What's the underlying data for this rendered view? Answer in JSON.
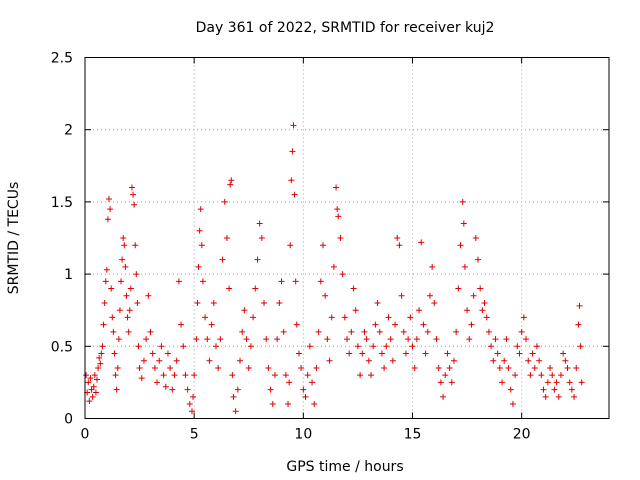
{
  "chart_data": {
    "type": "scatter",
    "title": "Day 361 of 2022, SRMTID for receiver kuj2",
    "xlabel": "GPS time / hours",
    "ylabel": "SRMTID / TECUs",
    "xlim": [
      0,
      24
    ],
    "ylim": [
      0,
      2.5
    ],
    "x_ticks": [
      0,
      5,
      10,
      15,
      20
    ],
    "x_tick_labels": [
      "0",
      "5",
      "10",
      "15",
      "20"
    ],
    "y_ticks": [
      0,
      0.5,
      1,
      1.5,
      2,
      2.5
    ],
    "y_tick_labels": [
      "0",
      "0.5",
      "1",
      "1.5",
      "2",
      "2.5"
    ],
    "grid": true,
    "marker": "plus",
    "marker_color": "#e00000",
    "series": [
      {
        "name": "SRMTID",
        "points": [
          [
            0.05,
            0.3
          ],
          [
            0.1,
            0.18
          ],
          [
            0.15,
            0.25
          ],
          [
            0.2,
            0.12
          ],
          [
            0.25,
            0.28
          ],
          [
            0.3,
            0.2
          ],
          [
            0.35,
            0.15
          ],
          [
            0.4,
            0.22
          ],
          [
            0.45,
            0.3
          ],
          [
            0.5,
            0.18
          ],
          [
            0.55,
            0.27
          ],
          [
            0.6,
            0.35
          ],
          [
            0.65,
            0.42
          ],
          [
            0.7,
            0.38
          ],
          [
            0.75,
            0.45
          ],
          [
            0.8,
            0.5
          ],
          [
            0.85,
            0.65
          ],
          [
            0.9,
            0.8
          ],
          [
            0.95,
            0.95
          ],
          [
            1.0,
            1.03
          ],
          [
            1.05,
            1.38
          ],
          [
            1.1,
            1.52
          ],
          [
            1.15,
            1.45
          ],
          [
            1.2,
            0.9
          ],
          [
            1.25,
            0.7
          ],
          [
            1.3,
            0.6
          ],
          [
            1.35,
            0.45
          ],
          [
            1.4,
            0.3
          ],
          [
            1.45,
            0.2
          ],
          [
            1.5,
            0.35
          ],
          [
            1.55,
            0.55
          ],
          [
            1.6,
            0.75
          ],
          [
            1.65,
            0.95
          ],
          [
            1.7,
            1.1
          ],
          [
            1.75,
            1.25
          ],
          [
            1.8,
            1.2
          ],
          [
            1.85,
            1.05
          ],
          [
            1.9,
            0.85
          ],
          [
            1.95,
            0.7
          ],
          [
            2.0,
            0.6
          ],
          [
            2.05,
            0.75
          ],
          [
            2.1,
            0.9
          ],
          [
            2.15,
            1.6
          ],
          [
            2.2,
            1.55
          ],
          [
            2.25,
            1.48
          ],
          [
            2.3,
            1.2
          ],
          [
            2.35,
            1.0
          ],
          [
            2.4,
            0.8
          ],
          [
            2.45,
            0.5
          ],
          [
            2.5,
            0.35
          ],
          [
            2.6,
            0.28
          ],
          [
            2.7,
            0.4
          ],
          [
            2.8,
            0.55
          ],
          [
            2.9,
            0.85
          ],
          [
            3.0,
            0.6
          ],
          [
            3.1,
            0.45
          ],
          [
            3.2,
            0.35
          ],
          [
            3.3,
            0.25
          ],
          [
            3.4,
            0.4
          ],
          [
            3.5,
            0.5
          ],
          [
            3.6,
            0.3
          ],
          [
            3.7,
            0.22
          ],
          [
            3.8,
            0.45
          ],
          [
            3.9,
            0.35
          ],
          [
            4.0,
            0.2
          ],
          [
            4.1,
            0.3
          ],
          [
            4.2,
            0.4
          ],
          [
            4.3,
            0.95
          ],
          [
            4.4,
            0.65
          ],
          [
            4.5,
            0.5
          ],
          [
            4.6,
            0.3
          ],
          [
            4.7,
            0.2
          ],
          [
            4.8,
            0.1
          ],
          [
            4.9,
            0.05
          ],
          [
            4.95,
            0.15
          ],
          [
            5.0,
            0.3
          ],
          [
            5.1,
            0.55
          ],
          [
            5.15,
            0.8
          ],
          [
            5.2,
            1.05
          ],
          [
            5.25,
            1.3
          ],
          [
            5.3,
            1.45
          ],
          [
            5.35,
            1.2
          ],
          [
            5.4,
            0.95
          ],
          [
            5.5,
            0.7
          ],
          [
            5.6,
            0.55
          ],
          [
            5.7,
            0.4
          ],
          [
            5.8,
            0.65
          ],
          [
            5.9,
            0.8
          ],
          [
            6.0,
            0.5
          ],
          [
            6.1,
            0.35
          ],
          [
            6.2,
            0.55
          ],
          [
            6.3,
            1.1
          ],
          [
            6.4,
            1.5
          ],
          [
            6.5,
            1.25
          ],
          [
            6.6,
            0.9
          ],
          [
            6.65,
            1.62
          ],
          [
            6.7,
            1.65
          ],
          [
            6.75,
            0.3
          ],
          [
            6.8,
            0.15
          ],
          [
            6.9,
            0.05
          ],
          [
            7.0,
            0.2
          ],
          [
            7.1,
            0.4
          ],
          [
            7.2,
            0.6
          ],
          [
            7.3,
            0.75
          ],
          [
            7.4,
            0.55
          ],
          [
            7.5,
            0.35
          ],
          [
            7.6,
            0.5
          ],
          [
            7.7,
            0.7
          ],
          [
            7.8,
            0.9
          ],
          [
            7.9,
            1.1
          ],
          [
            8.0,
            1.35
          ],
          [
            8.1,
            1.25
          ],
          [
            8.2,
            0.8
          ],
          [
            8.3,
            0.55
          ],
          [
            8.4,
            0.35
          ],
          [
            8.5,
            0.2
          ],
          [
            8.6,
            0.1
          ],
          [
            8.7,
            0.3
          ],
          [
            8.8,
            0.55
          ],
          [
            8.9,
            0.8
          ],
          [
            9.0,
            0.95
          ],
          [
            9.1,
            0.6
          ],
          [
            9.2,
            0.3
          ],
          [
            9.3,
            0.1
          ],
          [
            9.35,
            0.25
          ],
          [
            9.4,
            1.2
          ],
          [
            9.45,
            1.65
          ],
          [
            9.5,
            1.85
          ],
          [
            9.55,
            2.03
          ],
          [
            9.6,
            1.55
          ],
          [
            9.65,
            0.95
          ],
          [
            9.7,
            0.65
          ],
          [
            9.8,
            0.45
          ],
          [
            9.9,
            0.35
          ],
          [
            10.0,
            0.2
          ],
          [
            10.1,
            0.15
          ],
          [
            10.2,
            0.3
          ],
          [
            10.3,
            0.5
          ],
          [
            10.4,
            0.25
          ],
          [
            10.5,
            0.1
          ],
          [
            10.6,
            0.35
          ],
          [
            10.7,
            0.6
          ],
          [
            10.8,
            0.95
          ],
          [
            10.9,
            1.2
          ],
          [
            11.0,
            0.85
          ],
          [
            11.1,
            0.55
          ],
          [
            11.2,
            0.4
          ],
          [
            11.3,
            0.7
          ],
          [
            11.4,
            1.05
          ],
          [
            11.5,
            1.6
          ],
          [
            11.55,
            1.45
          ],
          [
            11.6,
            1.4
          ],
          [
            11.7,
            1.25
          ],
          [
            11.8,
            1.0
          ],
          [
            11.9,
            0.7
          ],
          [
            12.0,
            0.55
          ],
          [
            12.1,
            0.45
          ],
          [
            12.2,
            0.6
          ],
          [
            12.3,
            0.9
          ],
          [
            12.4,
            0.75
          ],
          [
            12.5,
            0.5
          ],
          [
            12.6,
            0.3
          ],
          [
            12.7,
            0.45
          ],
          [
            12.8,
            0.6
          ],
          [
            12.9,
            0.55
          ],
          [
            13.0,
            0.4
          ],
          [
            13.1,
            0.3
          ],
          [
            13.2,
            0.5
          ],
          [
            13.3,
            0.65
          ],
          [
            13.4,
            0.8
          ],
          [
            13.5,
            0.6
          ],
          [
            13.6,
            0.45
          ],
          [
            13.7,
            0.35
          ],
          [
            13.8,
            0.5
          ],
          [
            13.9,
            0.7
          ],
          [
            14.0,
            0.55
          ],
          [
            14.1,
            0.4
          ],
          [
            14.2,
            0.65
          ],
          [
            14.3,
            1.25
          ],
          [
            14.4,
            1.2
          ],
          [
            14.5,
            0.85
          ],
          [
            14.6,
            0.6
          ],
          [
            14.7,
            0.45
          ],
          [
            14.8,
            0.55
          ],
          [
            14.9,
            0.7
          ],
          [
            15.0,
            0.5
          ],
          [
            15.1,
            0.35
          ],
          [
            15.2,
            0.55
          ],
          [
            15.3,
            0.75
          ],
          [
            15.4,
            1.22
          ],
          [
            15.5,
            0.65
          ],
          [
            15.6,
            0.45
          ],
          [
            15.7,
            0.6
          ],
          [
            15.8,
            0.85
          ],
          [
            15.9,
            1.05
          ],
          [
            16.0,
            0.8
          ],
          [
            16.1,
            0.55
          ],
          [
            16.2,
            0.35
          ],
          [
            16.3,
            0.25
          ],
          [
            16.4,
            0.15
          ],
          [
            16.5,
            0.3
          ],
          [
            16.6,
            0.45
          ],
          [
            16.7,
            0.35
          ],
          [
            16.8,
            0.25
          ],
          [
            16.9,
            0.4
          ],
          [
            17.0,
            0.6
          ],
          [
            17.1,
            0.9
          ],
          [
            17.2,
            1.2
          ],
          [
            17.3,
            1.5
          ],
          [
            17.35,
            1.35
          ],
          [
            17.4,
            1.05
          ],
          [
            17.5,
            0.75
          ],
          [
            17.6,
            0.55
          ],
          [
            17.7,
            0.65
          ],
          [
            17.8,
            0.85
          ],
          [
            17.9,
            1.25
          ],
          [
            18.0,
            1.1
          ],
          [
            18.1,
            0.9
          ],
          [
            18.2,
            0.75
          ],
          [
            18.3,
            0.8
          ],
          [
            18.4,
            0.7
          ],
          [
            18.5,
            0.6
          ],
          [
            18.6,
            0.5
          ],
          [
            18.7,
            0.4
          ],
          [
            18.8,
            0.55
          ],
          [
            18.9,
            0.45
          ],
          [
            19.0,
            0.35
          ],
          [
            19.1,
            0.25
          ],
          [
            19.2,
            0.4
          ],
          [
            19.3,
            0.55
          ],
          [
            19.4,
            0.35
          ],
          [
            19.5,
            0.2
          ],
          [
            19.6,
            0.1
          ],
          [
            19.7,
            0.3
          ],
          [
            19.8,
            0.5
          ],
          [
            19.9,
            0.45
          ],
          [
            20.0,
            0.6
          ],
          [
            20.1,
            0.7
          ],
          [
            20.2,
            0.55
          ],
          [
            20.3,
            0.4
          ],
          [
            20.4,
            0.3
          ],
          [
            20.5,
            0.45
          ],
          [
            20.6,
            0.35
          ],
          [
            20.7,
            0.5
          ],
          [
            20.8,
            0.4
          ],
          [
            20.9,
            0.3
          ],
          [
            21.0,
            0.2
          ],
          [
            21.1,
            0.15
          ],
          [
            21.2,
            0.25
          ],
          [
            21.3,
            0.35
          ],
          [
            21.4,
            0.3
          ],
          [
            21.5,
            0.2
          ],
          [
            21.6,
            0.25
          ],
          [
            21.7,
            0.15
          ],
          [
            21.8,
            0.3
          ],
          [
            21.9,
            0.45
          ],
          [
            22.0,
            0.4
          ],
          [
            22.1,
            0.35
          ],
          [
            22.2,
            0.25
          ],
          [
            22.3,
            0.2
          ],
          [
            22.4,
            0.15
          ],
          [
            22.5,
            0.35
          ],
          [
            22.6,
            0.65
          ],
          [
            22.65,
            0.78
          ],
          [
            22.7,
            0.5
          ],
          [
            22.75,
            0.25
          ]
        ]
      }
    ]
  }
}
